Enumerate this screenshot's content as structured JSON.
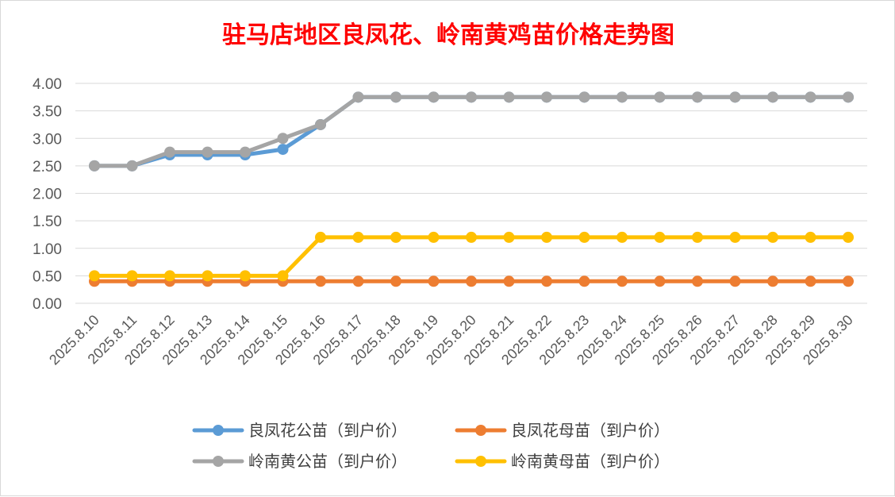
{
  "chart_data": {
    "type": "line",
    "title": "驻马店地区良凤花、岭南黄鸡苗价格走势图",
    "xlabel": "",
    "ylabel": "",
    "ylim": [
      0,
      4
    ],
    "yticks": [
      "0.00",
      "0.50",
      "1.00",
      "1.50",
      "2.00",
      "2.50",
      "3.00",
      "3.50",
      "4.00"
    ],
    "grid": true,
    "legend_position": "bottom",
    "categories": [
      "2025.8.10",
      "2025.8.11",
      "2025.8.12",
      "2025.8.13",
      "2025.8.14",
      "2025.8.15",
      "2025.8.16",
      "2025.8.17",
      "2025.8.18",
      "2025.8.19",
      "2025.8.20",
      "2025.8.21",
      "2025.8.22",
      "2025.8.23",
      "2025.8.24",
      "2025.8.25",
      "2025.8.26",
      "2025.8.27",
      "2025.8.28",
      "2025.8.29",
      "2025.8.30"
    ],
    "series": [
      {
        "name": "良凤花公苗（到户价）",
        "color": "#5b9bd5",
        "values": [
          2.5,
          2.5,
          2.7,
          2.7,
          2.7,
          2.8,
          3.25,
          3.75,
          3.75,
          3.75,
          3.75,
          3.75,
          3.75,
          3.75,
          3.75,
          3.75,
          3.75,
          3.75,
          3.75,
          3.75,
          3.75
        ]
      },
      {
        "name": "良凤花母苗（到户价）",
        "color": "#ed7d31",
        "values": [
          0.4,
          0.4,
          0.4,
          0.4,
          0.4,
          0.4,
          0.4,
          0.4,
          0.4,
          0.4,
          0.4,
          0.4,
          0.4,
          0.4,
          0.4,
          0.4,
          0.4,
          0.4,
          0.4,
          0.4,
          0.4
        ]
      },
      {
        "name": "岭南黄公苗（到户价）",
        "color": "#a5a5a5",
        "values": [
          2.5,
          2.5,
          2.75,
          2.75,
          2.75,
          3.0,
          3.25,
          3.75,
          3.75,
          3.75,
          3.75,
          3.75,
          3.75,
          3.75,
          3.75,
          3.75,
          3.75,
          3.75,
          3.75,
          3.75,
          3.75
        ]
      },
      {
        "name": "岭南黄母苗（到户价）",
        "color": "#ffc000",
        "values": [
          0.5,
          0.5,
          0.5,
          0.5,
          0.5,
          0.5,
          1.2,
          1.2,
          1.2,
          1.2,
          1.2,
          1.2,
          1.2,
          1.2,
          1.2,
          1.2,
          1.2,
          1.2,
          1.2,
          1.2,
          1.2
        ]
      }
    ],
    "draw_order": [
      1,
      3,
      0,
      2
    ],
    "legend_order": [
      0,
      1,
      2,
      3
    ]
  }
}
